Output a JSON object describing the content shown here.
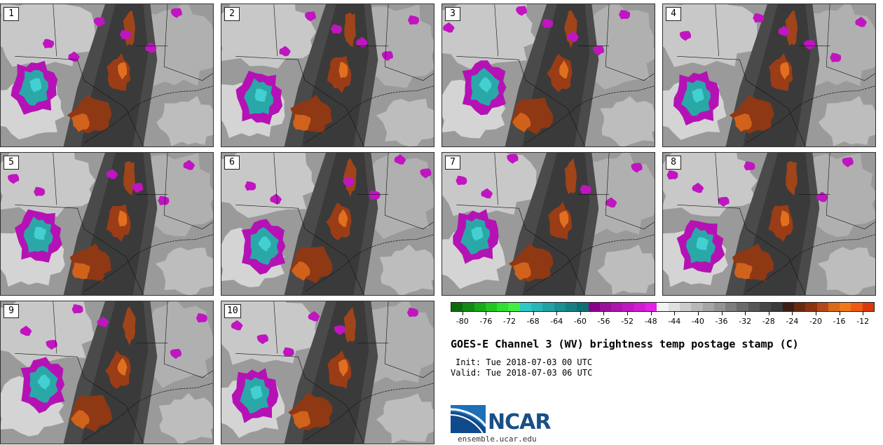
{
  "panels": [
    {
      "label": "1"
    },
    {
      "label": "2"
    },
    {
      "label": "3"
    },
    {
      "label": "4"
    },
    {
      "label": "5"
    },
    {
      "label": "6"
    },
    {
      "label": "7"
    },
    {
      "label": "8"
    },
    {
      "label": "9"
    },
    {
      "label": "10"
    }
  ],
  "colorbar": {
    "colors": [
      "#0b6b0b",
      "#138a13",
      "#18a818",
      "#22c522",
      "#33dd33",
      "#44ee44",
      "#2fc8c8",
      "#2ab5b5",
      "#22a2a2",
      "#1a9090",
      "#158080",
      "#0f7070",
      "#8a008a",
      "#9b119b",
      "#ae14ae",
      "#c018c0",
      "#d21cd2",
      "#e620e6",
      "#f2f2f2",
      "#e0e0e0",
      "#cccccc",
      "#b8b8b8",
      "#a5a5a5",
      "#939393",
      "#7e7e7e",
      "#6a6a6a",
      "#575757",
      "#474747",
      "#3a3a3a",
      "#3c1e14",
      "#6a2a10",
      "#8a3410",
      "#b4481a",
      "#d86a18",
      "#f07818",
      "#ee5a14",
      "#d83a0c"
    ],
    "tick_labels": [
      "-80",
      "-76",
      "-72",
      "-68",
      "-64",
      "-60",
      "-56",
      "-52",
      "-48",
      "-44",
      "-40",
      "-36",
      "-32",
      "-28",
      "-24",
      "-20",
      "-16",
      "-12"
    ],
    "min": -82,
    "max": -10
  },
  "title": "GOES-E Channel 3 (WV) brightness temp postage stamp (C)",
  "init": "Init: Tue 2018-07-03 00 UTC",
  "valid": "Valid: Tue 2018-07-03 06 UTC",
  "logo": {
    "text": "NCAR",
    "url": "ensemble.ucar.edu"
  }
}
